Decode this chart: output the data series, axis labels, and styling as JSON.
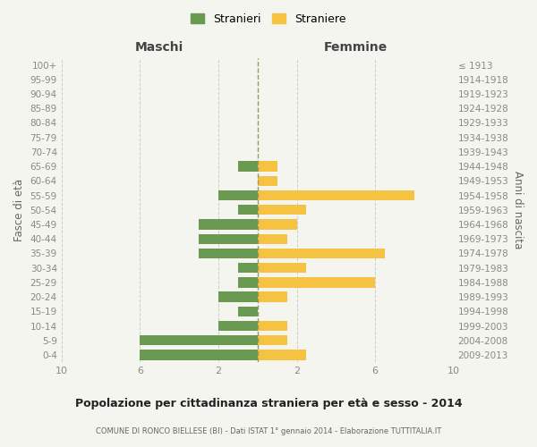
{
  "age_groups": [
    "0-4",
    "5-9",
    "10-14",
    "15-19",
    "20-24",
    "25-29",
    "30-34",
    "35-39",
    "40-44",
    "45-49",
    "50-54",
    "55-59",
    "60-64",
    "65-69",
    "70-74",
    "75-79",
    "80-84",
    "85-89",
    "90-94",
    "95-99",
    "100+"
  ],
  "birth_years": [
    "2009-2013",
    "2004-2008",
    "1999-2003",
    "1994-1998",
    "1989-1993",
    "1984-1988",
    "1979-1983",
    "1974-1978",
    "1969-1973",
    "1964-1968",
    "1959-1963",
    "1954-1958",
    "1949-1953",
    "1944-1948",
    "1939-1943",
    "1934-1938",
    "1929-1933",
    "1924-1928",
    "1919-1923",
    "1914-1918",
    "≤ 1913"
  ],
  "maschi": [
    6,
    6,
    2,
    1,
    2,
    1,
    1,
    3,
    3,
    3,
    1,
    2,
    0,
    1,
    0,
    0,
    0,
    0,
    0,
    0,
    0
  ],
  "femmine": [
    2.5,
    1.5,
    1.5,
    0,
    1.5,
    6,
    2.5,
    6.5,
    1.5,
    2,
    2.5,
    8,
    1,
    1,
    0,
    0,
    0,
    0,
    0,
    0,
    0
  ],
  "color_maschi": "#6a9a51",
  "color_femmine": "#f5c242",
  "title": "Popolazione per cittadinanza straniera per età e sesso - 2014",
  "subtitle": "COMUNE DI RONCO BIELLESE (BI) - Dati ISTAT 1° gennaio 2014 - Elaborazione TUTTITALIA.IT",
  "xlabel_left": "Maschi",
  "xlabel_right": "Femmine",
  "ylabel_left": "Fasce di età",
  "ylabel_right": "Anni di nascita",
  "xlim": 10,
  "legend_stranieri": "Stranieri",
  "legend_straniere": "Straniere",
  "background_color": "#f5f5f0",
  "grid_color": "#cccccc"
}
